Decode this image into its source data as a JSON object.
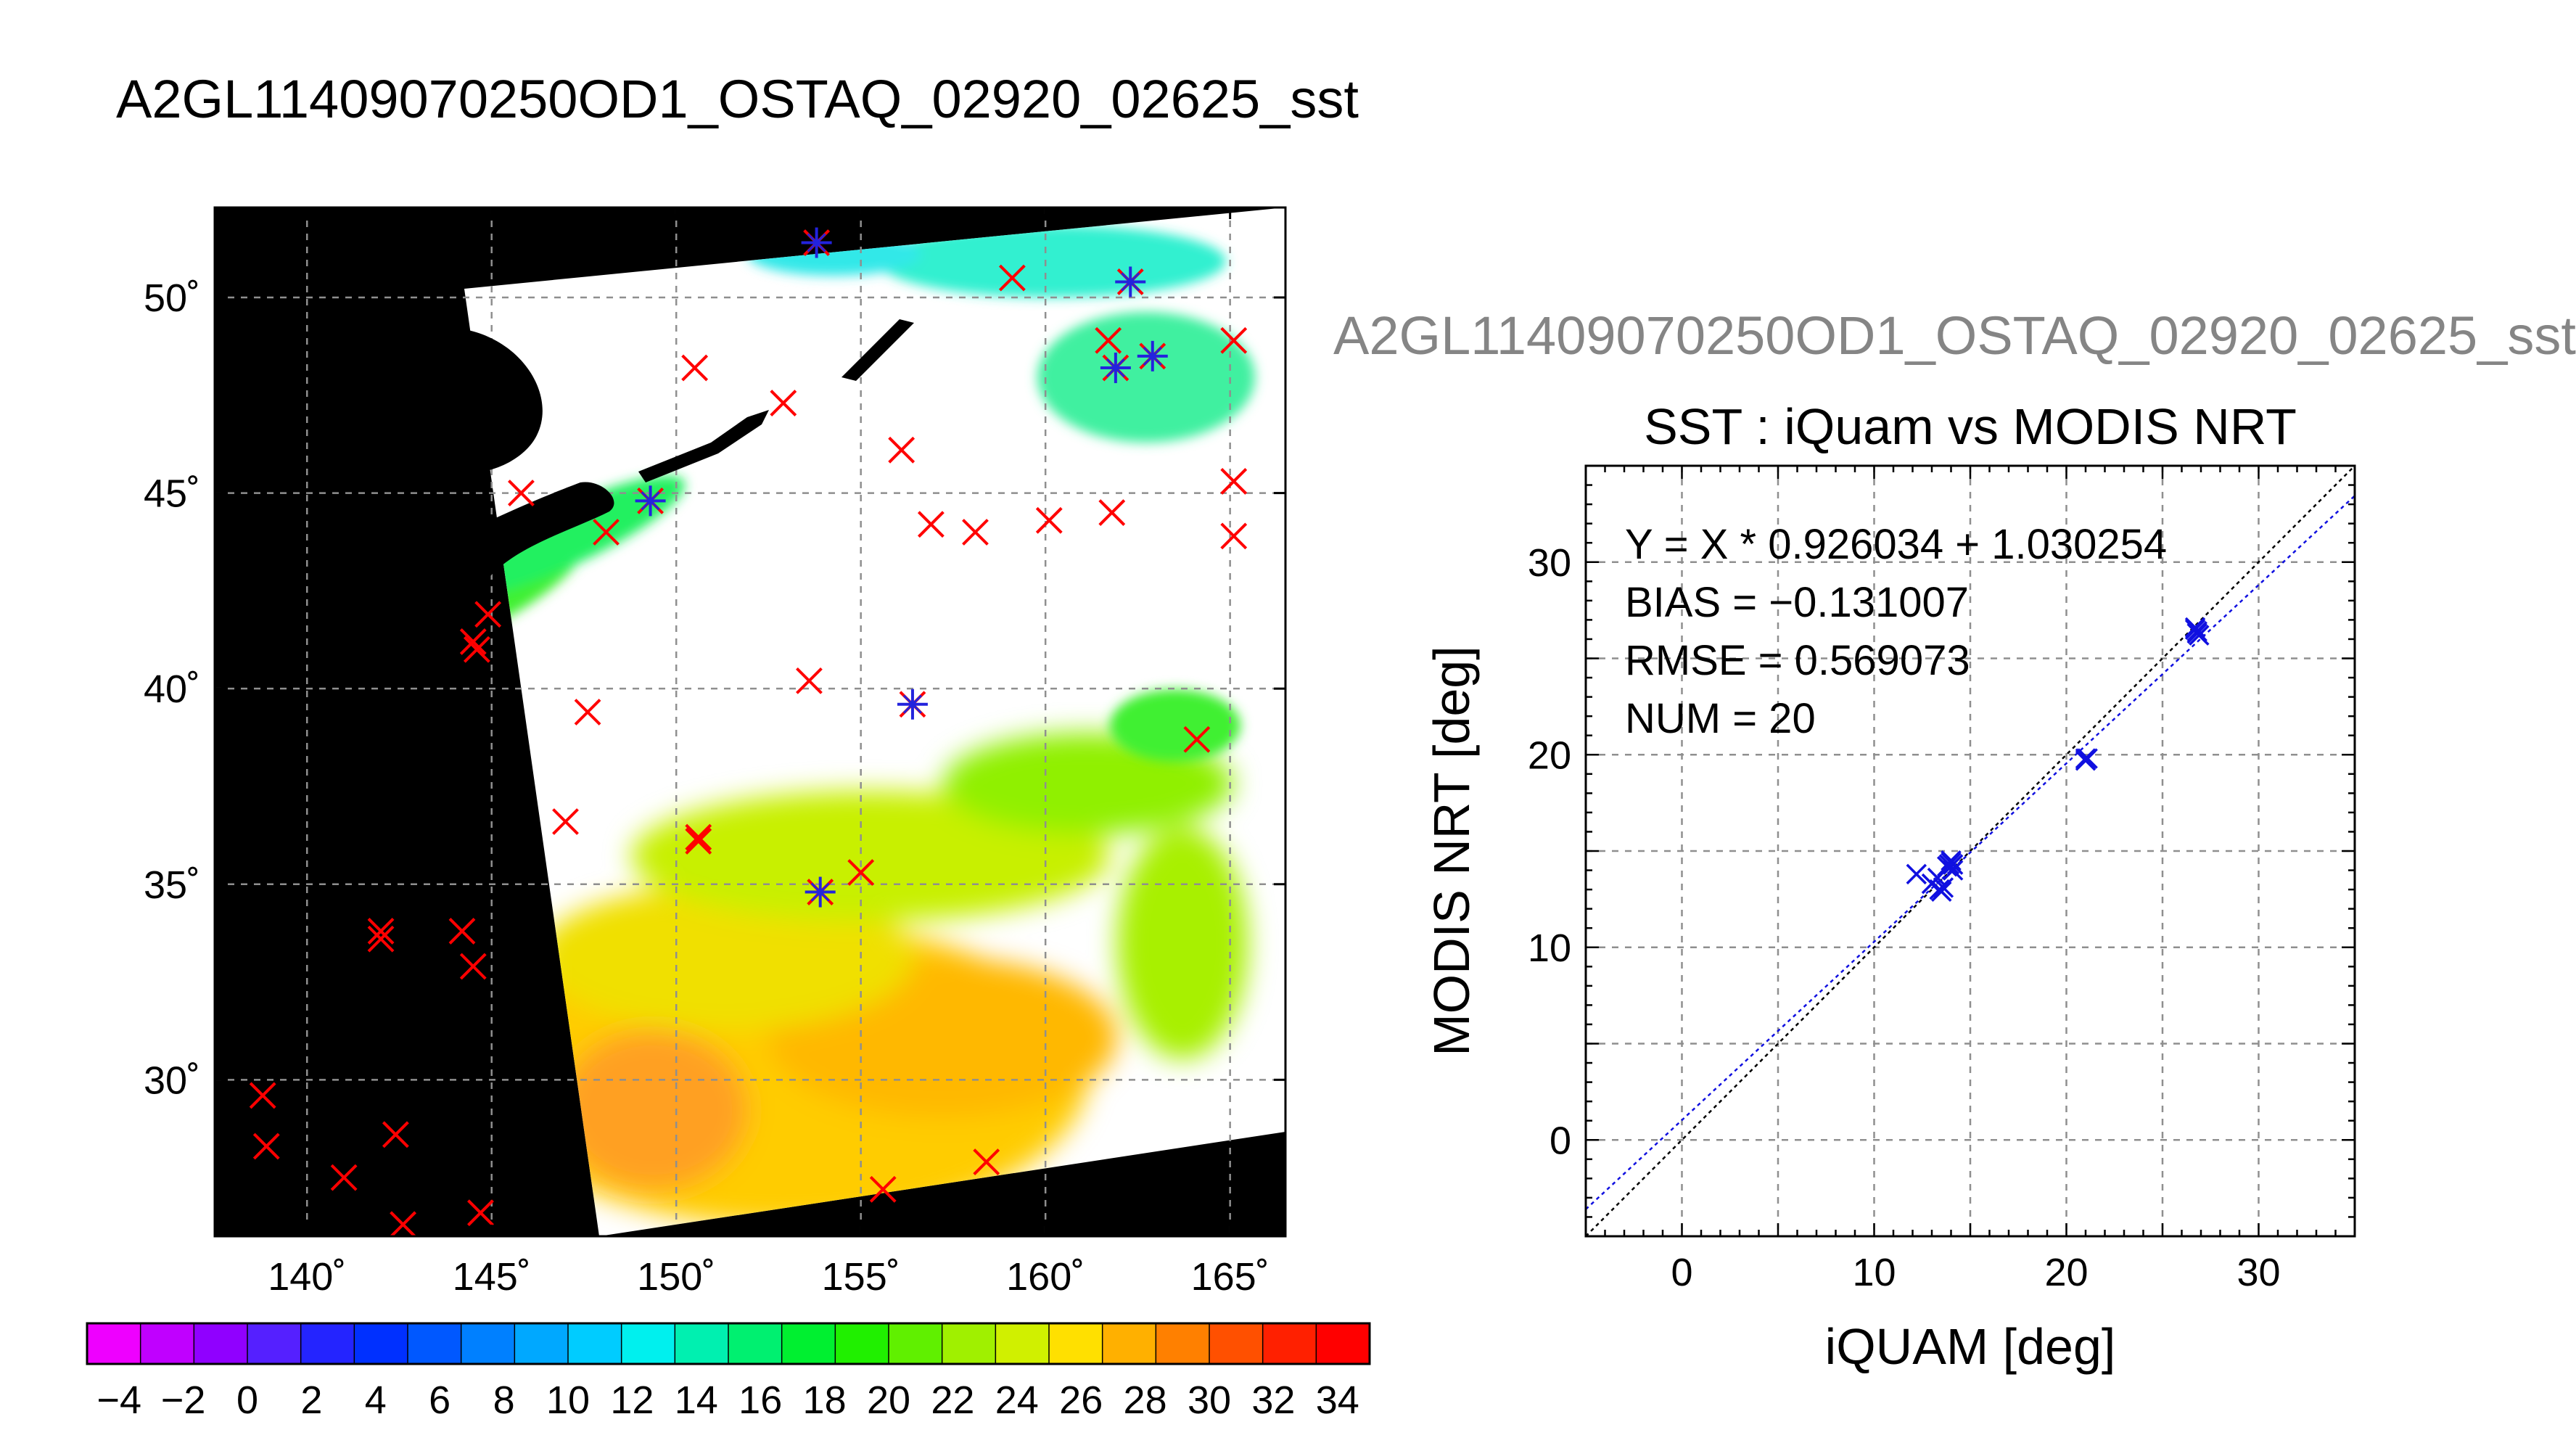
{
  "main_title": "A2GL11409070250OD1_OSTAQ_02920_02625_sst",
  "scatter_figure_title": "A2GL11409070250OD1_OSTAQ_02920_02625_sst",
  "chart_data": [
    {
      "type": "map",
      "title": "",
      "xlim": [
        137.5,
        166.5
      ],
      "ylim": [
        26.0,
        52.3
      ],
      "x_ticks": [
        140,
        145,
        150,
        155,
        160,
        165
      ],
      "y_ticks": [
        30,
        35,
        40,
        45,
        50
      ],
      "x_tick_labels": [
        "140˚",
        "145˚",
        "150˚",
        "155˚",
        "160˚",
        "165˚"
      ],
      "y_tick_labels": [
        "30˚",
        "35˚",
        "40˚",
        "45˚",
        "50˚"
      ],
      "grid": true,
      "colors": {
        "background": "#000000",
        "swath": "#ffffff",
        "red_marker": "#ff0000",
        "blue_marker": "#2323dd"
      },
      "red_markers": [
        [
          138.8,
          29.6
        ],
        [
          138.9,
          28.3
        ],
        [
          141.0,
          27.5
        ],
        [
          142.4,
          28.6
        ],
        [
          142.6,
          26.3
        ],
        [
          144.7,
          26.6
        ],
        [
          142.0,
          33.8
        ],
        [
          142.0,
          33.6
        ],
        [
          144.2,
          33.8
        ],
        [
          144.5,
          32.9
        ],
        [
          147.0,
          36.6
        ],
        [
          147.6,
          39.4
        ],
        [
          144.5,
          41.2
        ],
        [
          144.6,
          41.0
        ],
        [
          144.9,
          41.9
        ],
        [
          145.8,
          45.0
        ],
        [
          148.1,
          44.0
        ],
        [
          150.5,
          48.2
        ],
        [
          150.6,
          36.2
        ],
        [
          150.6,
          36.1
        ],
        [
          152.9,
          47.3
        ],
        [
          153.6,
          40.2
        ],
        [
          155.0,
          35.3
        ],
        [
          155.6,
          27.2
        ],
        [
          156.1,
          46.1
        ],
        [
          156.9,
          44.2
        ],
        [
          158.1,
          44.0
        ],
        [
          159.1,
          50.5
        ],
        [
          158.4,
          27.9
        ],
        [
          160.1,
          44.3
        ],
        [
          161.7,
          48.9
        ],
        [
          161.8,
          44.5
        ],
        [
          164.1,
          38.7
        ],
        [
          165.1,
          48.9
        ],
        [
          165.1,
          45.3
        ],
        [
          165.1,
          43.9
        ]
      ],
      "blue_markers": [
        [
          153.8,
          51.4
        ],
        [
          149.3,
          44.8
        ],
        [
          156.4,
          39.6
        ],
        [
          153.9,
          34.8
        ],
        [
          162.3,
          50.4
        ],
        [
          161.9,
          48.2
        ],
        [
          162.9,
          48.5
        ]
      ],
      "colorbar": {
        "range": [
          -5,
          35
        ],
        "tick_labels": [
          "−4",
          "−2",
          "0",
          "2",
          "4",
          "6",
          "8",
          "10",
          "12",
          "14",
          "16",
          "18",
          "20",
          "22",
          "24",
          "26",
          "28",
          "30",
          "32",
          "34"
        ],
        "colors": [
          "#ee00ff",
          "#c000ff",
          "#9000ff",
          "#5520ff",
          "#2424ff",
          "#0030ff",
          "#0058ff",
          "#0080ff",
          "#00a8ff",
          "#00ccff",
          "#00f0ee",
          "#00f0b0",
          "#00f070",
          "#00f030",
          "#20f000",
          "#60f000",
          "#a0f000",
          "#d0f000",
          "#ffe000",
          "#ffb000",
          "#ff8000",
          "#ff5000",
          "#ff2000",
          "#ff0000"
        ]
      }
    },
    {
      "type": "scatter",
      "title": "SST : iQuam vs MODIS NRT",
      "xlabel": "iQUAM [deg]",
      "ylabel": "MODIS NRT [deg]",
      "xlim": [
        -5,
        35
      ],
      "ylim": [
        -5,
        35
      ],
      "x_ticks": [
        0,
        10,
        20,
        30
      ],
      "y_ticks": [
        0,
        10,
        20,
        30
      ],
      "grid": true,
      "annotations": [
        "Y = X * 0.926034 + 1.030254",
        "BIAS = −0.131007",
        "RMSE = 0.569073",
        "NUM = 20"
      ],
      "fit": {
        "slope": 0.926034,
        "intercept": 1.030254
      },
      "colors": {
        "points": "#1010e0",
        "fit_line": "#1010e0",
        "identity_line": "#000000"
      },
      "points": [
        [
          12.2,
          13.8
        ],
        [
          13.0,
          13.3
        ],
        [
          13.4,
          13.0
        ],
        [
          13.5,
          12.9
        ],
        [
          13.8,
          14.2
        ],
        [
          14.0,
          14.4
        ],
        [
          14.1,
          14.0
        ],
        [
          21.0,
          19.8
        ],
        [
          21.0,
          19.7
        ],
        [
          26.7,
          26.6
        ],
        [
          26.8,
          26.3
        ],
        [
          26.9,
          26.2
        ],
        [
          13.6,
          13.1
        ],
        [
          13.9,
          14.3
        ],
        [
          14.0,
          14.5
        ],
        [
          21.1,
          19.8
        ],
        [
          26.7,
          26.5
        ],
        [
          26.8,
          26.4
        ],
        [
          13.3,
          13.6
        ],
        [
          14.1,
          14.3
        ]
      ]
    }
  ]
}
